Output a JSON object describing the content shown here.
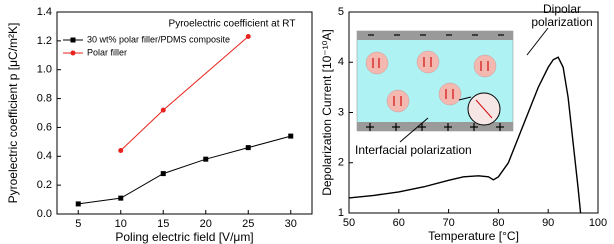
{
  "chart_data": [
    {
      "type": "line",
      "title": "Pyroelectric coefficient at RT",
      "x_label": "Poling electric field [V/μm]",
      "y_label": "Pyroelectric coefficient p [μC/m²K]",
      "xlim": [
        2.5,
        32.5
      ],
      "xticks": [
        5,
        10,
        15,
        20,
        25,
        30
      ],
      "ylim": [
        0,
        1.4
      ],
      "yticks": [
        {
          "value": 0,
          "label": "0.0"
        },
        0.2,
        0.4,
        0.6,
        0.8,
        {
          "value": 1,
          "label": "1.0"
        },
        1.2,
        1.4
      ],
      "legend": "upper left",
      "series": [
        {
          "name": "30 wt% polar filler/PDMS composite",
          "color": "#000000",
          "marker": "square",
          "x": [
            5,
            10,
            15,
            20,
            25,
            30
          ],
          "values": [
            0.07,
            0.11,
            0.28,
            0.38,
            0.46,
            0.54
          ]
        },
        {
          "name": "Polar filler",
          "color": "#e8221c",
          "marker": "circle",
          "x": [
            10,
            15,
            25
          ],
          "values": [
            0.44,
            0.72,
            1.23
          ]
        }
      ]
    },
    {
      "type": "line",
      "x_label": "Temperature [°C]",
      "y_label": "Depolarization Current [10⁻¹⁰A]",
      "xlim": [
        50,
        100
      ],
      "xticks": [
        50,
        60,
        70,
        80,
        90,
        100
      ],
      "ylim": [
        1,
        5
      ],
      "yticks": [
        1,
        2,
        3,
        4,
        5
      ],
      "annotations": [
        {
          "lines": [
            "Dipolar",
            "polarization"
          ]
        },
        {
          "lines": [
            "Interfacial polarization"
          ]
        }
      ],
      "series": [
        {
          "color": "#000000",
          "x": [
            50,
            55,
            60,
            65,
            70,
            73,
            76,
            78,
            79,
            80,
            82,
            84,
            86,
            88,
            90,
            91,
            92,
            93,
            94,
            95,
            96,
            96.5
          ],
          "values": [
            1.3,
            1.35,
            1.42,
            1.52,
            1.65,
            1.72,
            1.74,
            1.72,
            1.66,
            1.72,
            2.0,
            2.5,
            3.0,
            3.5,
            3.9,
            4.05,
            4.1,
            3.9,
            3.3,
            2.4,
            1.5,
            1.0
          ]
        }
      ]
    }
  ]
}
